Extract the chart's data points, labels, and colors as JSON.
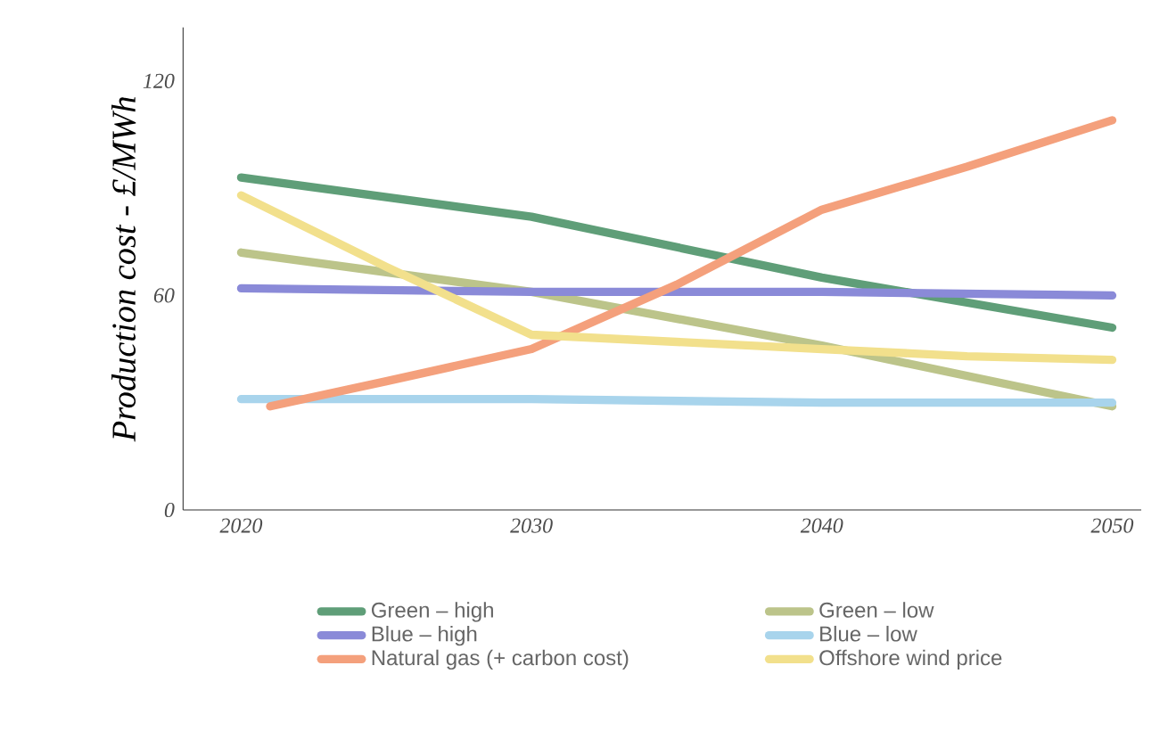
{
  "chart_data": {
    "type": "line",
    "ylabel": "Production cost - £/MWh",
    "x": [
      2020,
      2030,
      2040,
      2050
    ],
    "series": [
      {
        "name": "Green – high",
        "color": "#5f9e78",
        "values": [
          93,
          82,
          65,
          51
        ]
      },
      {
        "name": "Green – low",
        "color": "#bcc48a",
        "values": [
          72,
          61,
          46,
          29
        ]
      },
      {
        "name": "Blue – high",
        "color": "#8a8ad8",
        "values": [
          62,
          61,
          61,
          60
        ]
      },
      {
        "name": "Blue – low",
        "color": "#a8d4ec",
        "values": [
          31,
          31,
          30,
          30
        ]
      },
      {
        "name": "Natural gas (+ carbon cost)",
        "color": "#f4a07c",
        "x": [
          2021,
          2025,
          2030,
          2035,
          2040,
          2045,
          2050
        ],
        "values": [
          29,
          36,
          45,
          63,
          84,
          96,
          109
        ]
      },
      {
        "name": "Offshore wind price",
        "color": "#f2e08c",
        "x": [
          2020,
          2025,
          2030,
          2035,
          2040,
          2045,
          2050
        ],
        "values": [
          88,
          68,
          49,
          47,
          45,
          43,
          42
        ]
      }
    ],
    "xlim": [
      2018,
      2051
    ],
    "ylim": [
      0,
      135
    ],
    "xticks": [
      2020,
      2030,
      2040,
      2050
    ],
    "yticks": [
      0,
      60,
      120
    ],
    "legend": "bottom",
    "marker": "none",
    "line_style": "solid",
    "grid": false
  }
}
